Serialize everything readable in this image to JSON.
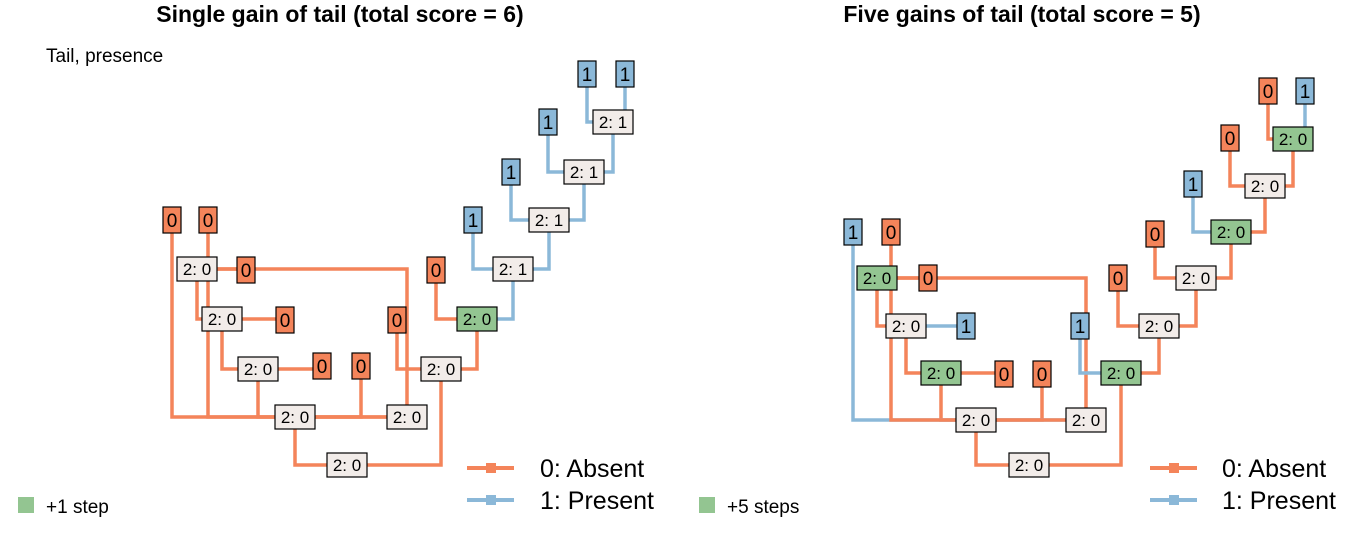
{
  "colors": {
    "absent": "#f4845a",
    "present": "#8bb8d8",
    "gain_node": "#93c591",
    "plain_node": "#f2ece9"
  },
  "panels": [
    {
      "title": "Single gain of tail (total score = 6)",
      "character_label": "Tail, presence",
      "step_label": "+1 step",
      "legend": [
        {
          "label": "0: Absent",
          "state": "absent"
        },
        {
          "label": "1: Present",
          "state": "present"
        }
      ],
      "tips": [
        "0",
        "0",
        "0",
        "0",
        "0",
        "0",
        "0",
        "0",
        "1",
        "1",
        "1",
        "1",
        "1"
      ],
      "nodes": [
        {
          "label": "2: 0",
          "gain": false
        },
        {
          "label": "2: 0",
          "gain": false
        },
        {
          "label": "2: 0",
          "gain": false
        },
        {
          "label": "2: 0",
          "gain": false
        },
        {
          "label": "2: 0",
          "gain": false
        },
        {
          "label": "2: 0",
          "gain": false
        },
        {
          "label": "2: 0",
          "gain": false
        },
        {
          "label": "2: 0",
          "gain": true
        },
        {
          "label": "2: 1",
          "gain": false
        },
        {
          "label": "2: 1",
          "gain": false
        },
        {
          "label": "2: 1",
          "gain": false
        },
        {
          "label": "2: 1",
          "gain": false
        }
      ]
    },
    {
      "title": "Five gains of tail (total score = 5)",
      "character_label": "",
      "step_label": "+5 steps",
      "legend": [
        {
          "label": "0: Absent",
          "state": "absent"
        },
        {
          "label": "1: Present",
          "state": "present"
        }
      ],
      "tips": [
        "1",
        "0",
        "0",
        "1",
        "0",
        "0",
        "1",
        "0",
        "0",
        "1",
        "0",
        "0",
        "1"
      ],
      "nodes": [
        {
          "label": "2: 0",
          "gain": false
        },
        {
          "label": "2: 0",
          "gain": false
        },
        {
          "label": "2: 0",
          "gain": true
        },
        {
          "label": "2: 0",
          "gain": false
        },
        {
          "label": "2: 0",
          "gain": true
        },
        {
          "label": "2: 0",
          "gain": false
        },
        {
          "label": "2: 0",
          "gain": true
        },
        {
          "label": "2: 0",
          "gain": false
        },
        {
          "label": "2: 0",
          "gain": false
        },
        {
          "label": "2: 0",
          "gain": true
        },
        {
          "label": "2: 0",
          "gain": false
        },
        {
          "label": "2: 0",
          "gain": true
        }
      ]
    }
  ]
}
